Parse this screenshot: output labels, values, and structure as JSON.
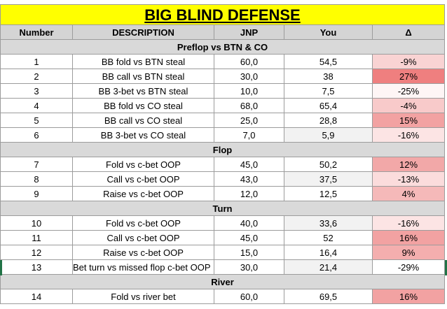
{
  "title": "BIG BLIND DEFENSE",
  "headers": {
    "number": "Number",
    "description": "DESCRIPTION",
    "jnp": "JNP",
    "you": "You",
    "delta": "Δ"
  },
  "sections": [
    {
      "label": "Preflop vs BTN & CO",
      "rows": [
        {
          "number": "1",
          "description": "BB fold vs BTN steal",
          "jnp": "60,0",
          "you": "54,5",
          "delta": "-9%",
          "delta_color": "#f9d3d3"
        },
        {
          "number": "2",
          "description": "BB call vs BTN steal",
          "jnp": "30,0",
          "you": "38",
          "delta": "27%",
          "delta_color": "#ef7f7f"
        },
        {
          "number": "3",
          "description": "BB 3-bet vs BTN steal",
          "jnp": "10,0",
          "you": "7,5",
          "delta": "-25%",
          "delta_color": "#fef5f5"
        },
        {
          "number": "4",
          "description": "BB fold vs CO steal",
          "jnp": "68,0",
          "you": "65,4",
          "delta": "-4%",
          "delta_color": "#f8caca"
        },
        {
          "number": "5",
          "description": "BB call vs CO steal",
          "jnp": "25,0",
          "you": "28,8",
          "delta": "15%",
          "delta_color": "#f2a2a2"
        },
        {
          "number": "6",
          "description": "BB 3-bet vs CO steal",
          "jnp": "7,0",
          "you": "5,9",
          "delta": "-16%",
          "delta_color": "#fce4e4"
        }
      ]
    },
    {
      "label": "Flop",
      "rows": [
        {
          "number": "7",
          "description": "Fold vs c-bet OOP",
          "jnp": "45,0",
          "you": "50,2",
          "delta": "12%",
          "delta_color": "#f2a8a8"
        },
        {
          "number": "8",
          "description": "Call vs c-bet OOP",
          "jnp": "43,0",
          "you": "37,5",
          "delta": "-13%",
          "delta_color": "#fbdcdc"
        },
        {
          "number": "9",
          "description": "Raise vs c-bet OOP",
          "jnp": "12,0",
          "you": "12,5",
          "delta": "4%",
          "delta_color": "#f5b9b9"
        }
      ]
    },
    {
      "label": "Turn",
      "rows": [
        {
          "number": "10",
          "description": "Fold vs c-bet OOP",
          "jnp": "40,0",
          "you": "33,6",
          "delta": "-16%",
          "delta_color": "#fce4e4"
        },
        {
          "number": "11",
          "description": "Call vs c-bet OOP",
          "jnp": "45,0",
          "you": "52",
          "delta": "16%",
          "delta_color": "#f2a2a2"
        },
        {
          "number": "12",
          "description": "Raise vs c-bet OOP",
          "jnp": "15,0",
          "you": "16,4",
          "delta": "9%",
          "delta_color": "#f4aeae"
        },
        {
          "number": "13",
          "description": "Bet turn vs missed flop c-bet OOP",
          "jnp": "30,0",
          "you": "21,4",
          "delta": "-29%",
          "delta_color": "#ffffff"
        }
      ]
    },
    {
      "label": "River",
      "rows": [
        {
          "number": "14",
          "description": "Fold vs river bet",
          "jnp": "60,0",
          "you": "69,5",
          "delta": "16%",
          "delta_color": "#f2a2a2"
        }
      ]
    }
  ]
}
